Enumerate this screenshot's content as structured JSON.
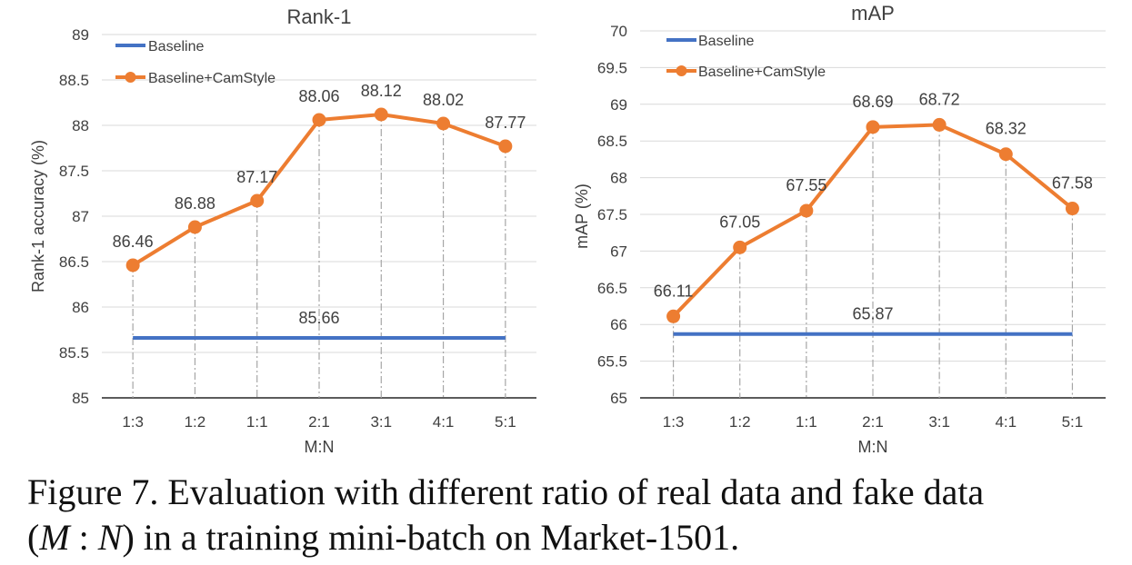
{
  "chart_data": [
    {
      "type": "line",
      "title": "Rank-1",
      "xlabel": "M:N",
      "ylabel": "Rank-1 accuracy (%)",
      "categories": [
        "1:3",
        "1:2",
        "1:1",
        "2:1",
        "3:1",
        "4:1",
        "5:1"
      ],
      "ylim": [
        85,
        89
      ],
      "yticks": [
        "85",
        "85.5",
        "86",
        "86.5",
        "87",
        "87.5",
        "88",
        "88.5",
        "89"
      ],
      "grid": "horizontal",
      "legend": "top-left",
      "series": [
        {
          "name": "Baseline",
          "color": "#4472c4",
          "values": [
            85.66,
            85.66,
            85.66,
            85.66,
            85.66,
            85.66,
            85.66
          ],
          "labels": [
            "85.66"
          ],
          "label_positions": [
            3
          ],
          "markers": false
        },
        {
          "name": "Baseline+CamStyle",
          "color": "#ed7d31",
          "values": [
            86.46,
            86.88,
            87.17,
            88.06,
            88.12,
            88.02,
            87.77
          ],
          "labels": [
            "86.46",
            "86.88",
            "87.17",
            "88.06",
            "88.12",
            "88.02",
            "87.77"
          ],
          "markers": true
        }
      ]
    },
    {
      "type": "line",
      "title": "mAP",
      "xlabel": "M:N",
      "ylabel": "mAP (%)",
      "categories": [
        "1:3",
        "1:2",
        "1:1",
        "2:1",
        "3:1",
        "4:1",
        "5:1"
      ],
      "ylim": [
        65,
        70
      ],
      "yticks": [
        "65",
        "65.5",
        "66",
        "66.5",
        "67",
        "67.5",
        "68",
        "68.5",
        "69",
        "69.5",
        "70"
      ],
      "grid": "horizontal",
      "legend": "top-left",
      "series": [
        {
          "name": "Baseline",
          "color": "#4472c4",
          "values": [
            65.87,
            65.87,
            65.87,
            65.87,
            65.87,
            65.87,
            65.87
          ],
          "labels": [
            "65.87"
          ],
          "label_positions": [
            3
          ],
          "markers": false
        },
        {
          "name": "Baseline+CamStyle",
          "color": "#ed7d31",
          "values": [
            66.11,
            67.05,
            67.55,
            68.69,
            68.72,
            68.32,
            67.58
          ],
          "labels": [
            "66.11",
            "67.05",
            "67.55",
            "68.69",
            "68.72",
            "68.32",
            "67.58"
          ],
          "markers": true
        }
      ]
    }
  ],
  "caption": {
    "line1": "Figure 7. Evaluation with different ratio of real data and fake data",
    "line2_open": "(",
    "line2_m": "M",
    "line2_colon": " : ",
    "line2_n": "N",
    "line2_rest": ") in a training mini-batch on Market-1501."
  }
}
